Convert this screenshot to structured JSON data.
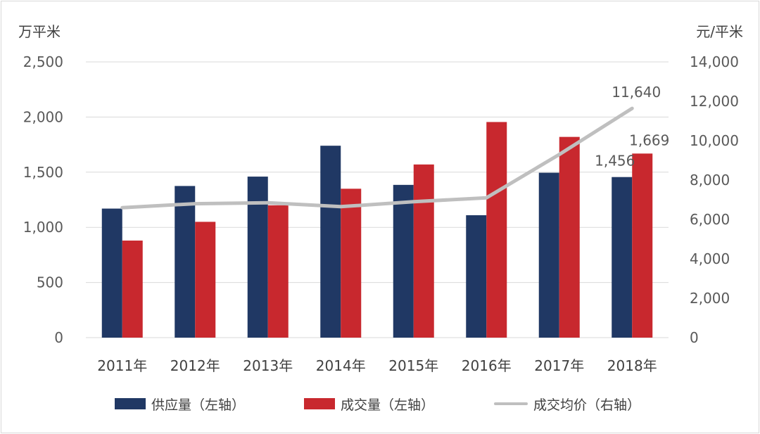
{
  "chart_data": {
    "type": "bar",
    "categories": [
      "2011年",
      "2012年",
      "2013年",
      "2014年",
      "2015年",
      "2016年",
      "2017年",
      "2018年"
    ],
    "series": [
      {
        "name": "供应量（左轴）",
        "type": "bar",
        "axis": "left",
        "color": "#203864",
        "values": [
          1170,
          1375,
          1460,
          1740,
          1385,
          1110,
          1495,
          1456
        ]
      },
      {
        "name": "成交量（左轴）",
        "type": "bar",
        "axis": "left",
        "color": "#c8282e",
        "values": [
          880,
          1050,
          1200,
          1350,
          1570,
          1955,
          1820,
          1669
        ]
      },
      {
        "name": "成交均价（右轴）",
        "type": "line",
        "axis": "right",
        "color": "#bfbfbf",
        "values": [
          6600,
          6800,
          6850,
          6650,
          6900,
          7100,
          9300,
          11640
        ]
      }
    ],
    "y_left": {
      "label": "万平米",
      "min": 0,
      "max": 2500,
      "ticks": [
        "0",
        "500",
        "1,000",
        "1,500",
        "2,000",
        "2,500"
      ]
    },
    "y_right": {
      "label": "元/平米",
      "min": 0,
      "max": 14000,
      "ticks": [
        "0",
        "2,000",
        "4,000",
        "6,000",
        "8,000",
        "10,000",
        "12,000",
        "14,000"
      ]
    },
    "data_labels": [
      {
        "series": 0,
        "index": 7,
        "text": "1,456"
      },
      {
        "series": 1,
        "index": 7,
        "text": "1,669"
      },
      {
        "series": 2,
        "index": 7,
        "text": "11,640"
      }
    ],
    "grid": true,
    "legend_position": "bottom"
  }
}
